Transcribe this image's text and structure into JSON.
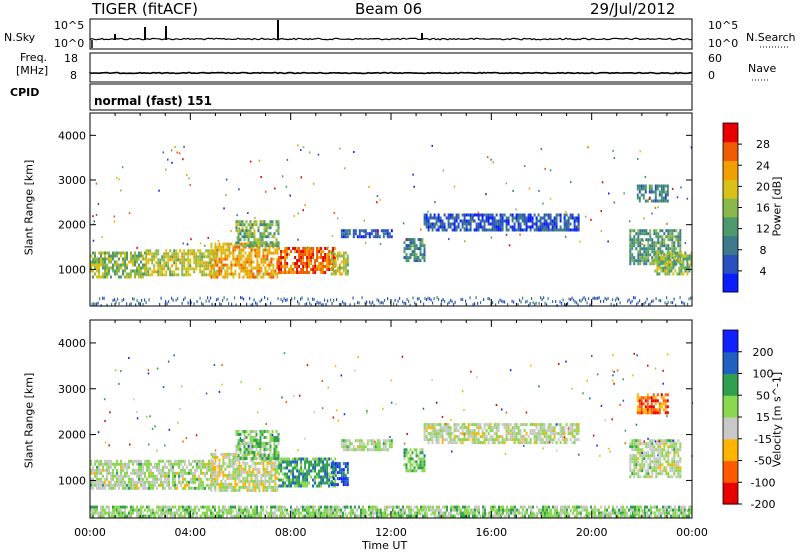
{
  "header": {
    "station": "TIGER (fitACF)",
    "beam": "Beam 06",
    "date": "29/Jul/2012"
  },
  "strip_panels": {
    "nsky": {
      "left_label": "N.Sky",
      "right_label": "N.Search",
      "left_ticks": [
        "10^5",
        "10^0"
      ],
      "right_ticks": [
        "10^5",
        "10^0"
      ]
    },
    "freq": {
      "left_label_line1": "Freq.",
      "left_label_line2": "[MHz]",
      "right_label": "Nave",
      "left_ticks": [
        "18",
        "8"
      ],
      "right_ticks": [
        "60",
        "0"
      ]
    },
    "cpid": {
      "label": "CPID",
      "text": "normal (fast) 151"
    }
  },
  "chart_data": [
    {
      "type": "heatmap",
      "name": "power",
      "ylabel": "Slant Range [km]",
      "yticks": [
        "4000",
        "3000",
        "2000",
        "1000"
      ],
      "ylim": [
        180,
        4500
      ],
      "xlim": [
        0,
        24
      ],
      "colorbar_label": "Power [dB]",
      "colorbar_ticks": [
        "28",
        "24",
        "20",
        "16",
        "12",
        "8",
        "4"
      ],
      "colorbar_range": [
        0,
        32
      ],
      "colorscale": [
        "#0a1dff",
        "#2a4fc0",
        "#3a7a8a",
        "#4c9a6b",
        "#8bb84a",
        "#d8c21a",
        "#f0a000",
        "#f05a00",
        "#e80000"
      ],
      "echo_regions": [
        {
          "t0": 0.0,
          "t1": 2.2,
          "r0": 850,
          "r1": 1400,
          "level": 16
        },
        {
          "t0": 2.2,
          "t1": 5.0,
          "r0": 850,
          "r1": 1450,
          "level": 18
        },
        {
          "t0": 4.8,
          "t1": 7.5,
          "r0": 800,
          "r1": 1600,
          "level": 22
        },
        {
          "t0": 5.8,
          "t1": 7.5,
          "r0": 1500,
          "r1": 2100,
          "level": 14
        },
        {
          "t0": 7.5,
          "t1": 9.8,
          "r0": 900,
          "r1": 1500,
          "level": 26
        },
        {
          "t0": 9.6,
          "t1": 10.3,
          "r0": 900,
          "r1": 1400,
          "level": 18
        },
        {
          "t0": 10.0,
          "t1": 12.0,
          "r0": 1700,
          "r1": 1900,
          "level": 6
        },
        {
          "t0": 12.5,
          "t1": 13.3,
          "r0": 1200,
          "r1": 1700,
          "level": 10
        },
        {
          "t0": 13.3,
          "t1": 19.5,
          "r0": 1850,
          "r1": 2250,
          "level": 6
        },
        {
          "t0": 21.5,
          "t1": 23.5,
          "r0": 1100,
          "r1": 1900,
          "level": 12
        },
        {
          "t0": 21.8,
          "t1": 23.0,
          "r0": 2500,
          "r1": 2900,
          "level": 10
        },
        {
          "t0": 22.5,
          "t1": 24.0,
          "r0": 900,
          "r1": 1400,
          "level": 16
        }
      ]
    },
    {
      "type": "heatmap",
      "name": "velocity",
      "ylabel": "Slant Range [km]",
      "yticks": [
        "4000",
        "3000",
        "2000",
        "1000"
      ],
      "ylim": [
        180,
        4500
      ],
      "xlim": [
        0,
        24
      ],
      "xticks": [
        "00:00",
        "04:00",
        "08:00",
        "12:00",
        "16:00",
        "20:00",
        "00:00"
      ],
      "xlabel": "Time UT",
      "colorbar_label": "Velocity [m s^-1]",
      "colorbar_ticks": [
        "200",
        "100",
        "50",
        "15",
        "-15",
        "-50",
        "-100",
        "-200"
      ],
      "colorbar_range": [
        -250,
        250
      ],
      "colorscale": [
        "#e80000",
        "#ff5a00",
        "#ffb400",
        "#c8c8c8",
        "#8ad850",
        "#30a050",
        "#2060c0",
        "#1020ff"
      ],
      "echo_regions": [
        {
          "t0": 0.0,
          "t1": 5.0,
          "r0": 850,
          "r1": 1450,
          "level": 0
        },
        {
          "t0": 4.8,
          "t1": 7.5,
          "r0": 800,
          "r1": 1600,
          "level": -20
        },
        {
          "t0": 5.8,
          "t1": 7.5,
          "r0": 1500,
          "r1": 2100,
          "level": 40
        },
        {
          "t0": 7.5,
          "t1": 9.8,
          "r0": 900,
          "r1": 1500,
          "level": 90
        },
        {
          "t0": 9.6,
          "t1": 10.3,
          "r0": 900,
          "r1": 1400,
          "level": 160
        },
        {
          "t0": 10.0,
          "t1": 12.0,
          "r0": 1700,
          "r1": 1900,
          "level": 0
        },
        {
          "t0": 12.5,
          "t1": 13.3,
          "r0": 1200,
          "r1": 1700,
          "level": 60
        },
        {
          "t0": 13.3,
          "t1": 19.5,
          "r0": 1850,
          "r1": 2250,
          "level": -10
        },
        {
          "t0": 21.5,
          "t1": 23.5,
          "r0": 1100,
          "r1": 1900,
          "level": 0
        },
        {
          "t0": 21.8,
          "t1": 23.0,
          "r0": 2500,
          "r1": 2900,
          "level": -150
        },
        {
          "t0": 0.0,
          "t1": 24.0,
          "r0": 200,
          "r1": 450,
          "level": 30
        }
      ]
    }
  ],
  "colors": {
    "axis": "#000000",
    "background": "#ffffff"
  }
}
